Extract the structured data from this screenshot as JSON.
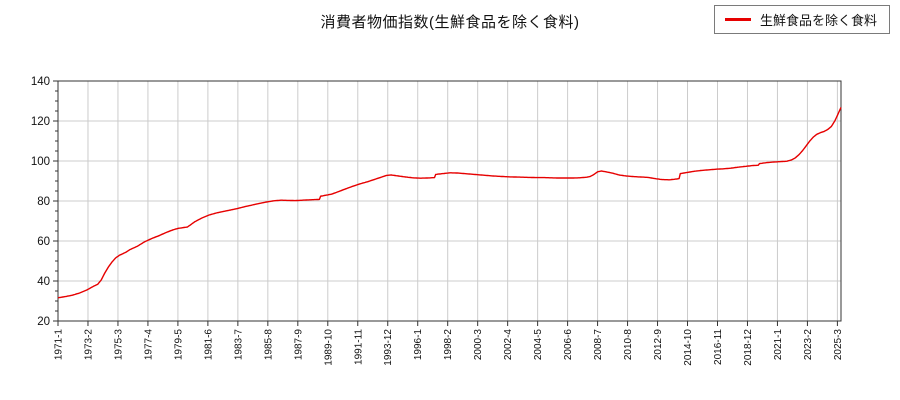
{
  "figure": {
    "title": "消費者物価指数(生鮮食品を除く食料)",
    "background_color": "#ffffff"
  },
  "legend": {
    "position": "top-right",
    "items": [
      {
        "label": "生鮮食品を除く食料",
        "swatch": "red-line",
        "color": "#e60000"
      }
    ]
  },
  "chart_data": {
    "type": "line",
    "title": "消費者物価指数(生鮮食品を除く食料)",
    "x_unit": "year-month (monthly series)",
    "x_range": [
      "1971-1",
      "2025-6"
    ],
    "ylim": [
      20,
      140
    ],
    "y_ticks": [
      20,
      40,
      60,
      80,
      100,
      120,
      140
    ],
    "y_minor_tick_step": 5,
    "x_tick_labels": [
      "1971-1",
      "1973-2",
      "1975-3",
      "1977-4",
      "1979-5",
      "1981-6",
      "1983-7",
      "1985-8",
      "1987-9",
      "1989-10",
      "1991-11",
      "1993-12",
      "1996-1",
      "1998-2",
      "2000-3",
      "2002-4",
      "2004-5",
      "2006-6",
      "2008-7",
      "2010-8",
      "2012-9",
      "2014-10",
      "2016-11",
      "2018-12",
      "2021-1",
      "2023-2",
      "2025-3"
    ],
    "x_tick_interval_months": 25,
    "grid": true,
    "grid_color": "#cccccc",
    "axis_color": "#333333",
    "legend_position": "top-right",
    "series": [
      {
        "name": "生鮮食品を除く食料",
        "color": "#e60000",
        "anchor_points": [
          [
            "1971-1",
            31.6
          ],
          [
            "1971-7",
            32.2
          ],
          [
            "1972-1",
            32.9
          ],
          [
            "1972-7",
            34.0
          ],
          [
            "1973-1",
            35.5
          ],
          [
            "1973-7",
            37.5
          ],
          [
            "1973-10",
            38.3
          ],
          [
            "1974-1",
            40.5
          ],
          [
            "1974-4",
            44.0
          ],
          [
            "1974-7",
            47.0
          ],
          [
            "1974-10",
            49.5
          ],
          [
            "1975-1",
            51.5
          ],
          [
            "1975-4",
            52.8
          ],
          [
            "1975-10",
            54.5
          ],
          [
            "1976-1",
            55.7
          ],
          [
            "1976-7",
            57.3
          ],
          [
            "1977-1",
            59.5
          ],
          [
            "1977-7",
            61.2
          ],
          [
            "1978-1",
            62.6
          ],
          [
            "1978-7",
            64.2
          ],
          [
            "1979-1",
            65.6
          ],
          [
            "1979-5",
            66.3
          ],
          [
            "1980-1",
            67.0
          ],
          [
            "1980-7",
            69.6
          ],
          [
            "1981-1",
            71.5
          ],
          [
            "1981-7",
            73.0
          ],
          [
            "1982-1",
            74.0
          ],
          [
            "1982-7",
            74.8
          ],
          [
            "1983-1",
            75.5
          ],
          [
            "1983-7",
            76.3
          ],
          [
            "1984-1",
            77.2
          ],
          [
            "1984-7",
            78.0
          ],
          [
            "1985-1",
            78.8
          ],
          [
            "1985-7",
            79.5
          ],
          [
            "1986-1",
            80.1
          ],
          [
            "1986-7",
            80.4
          ],
          [
            "1987-1",
            80.3
          ],
          [
            "1987-7",
            80.2
          ],
          [
            "1988-1",
            80.4
          ],
          [
            "1988-7",
            80.6
          ],
          [
            "1989-3",
            80.8
          ],
          [
            "1989-4",
            82.4
          ],
          [
            "1990-1",
            83.4
          ],
          [
            "1990-7",
            84.7
          ],
          [
            "1991-1",
            86.1
          ],
          [
            "1991-7",
            87.4
          ],
          [
            "1992-1",
            88.6
          ],
          [
            "1992-7",
            89.6
          ],
          [
            "1993-1",
            90.8
          ],
          [
            "1993-7",
            92.0
          ],
          [
            "1993-11",
            92.8
          ],
          [
            "1994-3",
            93.0
          ],
          [
            "1994-9",
            92.5
          ],
          [
            "1995-3",
            92.0
          ],
          [
            "1995-9",
            91.6
          ],
          [
            "1996-3",
            91.4
          ],
          [
            "1996-9",
            91.5
          ],
          [
            "1997-3",
            91.7
          ],
          [
            "1997-4",
            93.3
          ],
          [
            "1997-10",
            93.7
          ],
          [
            "1998-4",
            94.1
          ],
          [
            "1998-10",
            94.0
          ],
          [
            "1999-4",
            93.7
          ],
          [
            "1999-10",
            93.4
          ],
          [
            "2000-4",
            93.1
          ],
          [
            "2000-10",
            92.8
          ],
          [
            "2001-4",
            92.5
          ],
          [
            "2001-10",
            92.3
          ],
          [
            "2002-4",
            92.1
          ],
          [
            "2002-10",
            92.0
          ],
          [
            "2003-4",
            91.9
          ],
          [
            "2003-10",
            91.8
          ],
          [
            "2004-4",
            91.7
          ],
          [
            "2004-10",
            91.7
          ],
          [
            "2005-4",
            91.6
          ],
          [
            "2005-10",
            91.5
          ],
          [
            "2006-4",
            91.5
          ],
          [
            "2006-10",
            91.5
          ],
          [
            "2007-4",
            91.6
          ],
          [
            "2007-10",
            91.9
          ],
          [
            "2008-1",
            92.3
          ],
          [
            "2008-4",
            93.3
          ],
          [
            "2008-7",
            94.6
          ],
          [
            "2008-10",
            95.0
          ],
          [
            "2009-1",
            94.7
          ],
          [
            "2009-7",
            94.0
          ],
          [
            "2010-1",
            93.0
          ],
          [
            "2010-7",
            92.5
          ],
          [
            "2011-1",
            92.2
          ],
          [
            "2011-7",
            92.0
          ],
          [
            "2012-1",
            91.8
          ],
          [
            "2012-7",
            91.2
          ],
          [
            "2013-1",
            90.7
          ],
          [
            "2013-7",
            90.6
          ],
          [
            "2014-1",
            91.0
          ],
          [
            "2014-3",
            91.2
          ],
          [
            "2014-4",
            93.7
          ],
          [
            "2014-10",
            94.3
          ],
          [
            "2015-4",
            94.9
          ],
          [
            "2015-10",
            95.3
          ],
          [
            "2016-4",
            95.6
          ],
          [
            "2016-10",
            95.9
          ],
          [
            "2017-4",
            96.1
          ],
          [
            "2017-10",
            96.4
          ],
          [
            "2018-4",
            96.9
          ],
          [
            "2018-10",
            97.3
          ],
          [
            "2019-4",
            97.7
          ],
          [
            "2019-9",
            97.9
          ],
          [
            "2019-10",
            98.7
          ],
          [
            "2020-4",
            99.2
          ],
          [
            "2020-10",
            99.5
          ],
          [
            "2021-4",
            99.7
          ],
          [
            "2021-9",
            99.9
          ],
          [
            "2022-1",
            100.6
          ],
          [
            "2022-4",
            101.6
          ],
          [
            "2022-7",
            103.2
          ],
          [
            "2022-10",
            105.2
          ],
          [
            "2023-1",
            107.6
          ],
          [
            "2023-4",
            110.0
          ],
          [
            "2023-7",
            112.0
          ],
          [
            "2023-10",
            113.4
          ],
          [
            "2024-1",
            114.2
          ],
          [
            "2024-4",
            114.8
          ],
          [
            "2024-7",
            115.8
          ],
          [
            "2024-10",
            117.3
          ],
          [
            "2025-1",
            120.2
          ],
          [
            "2025-3",
            122.8
          ],
          [
            "2025-5",
            125.5
          ],
          [
            "2025-6",
            126.8
          ]
        ]
      }
    ]
  }
}
